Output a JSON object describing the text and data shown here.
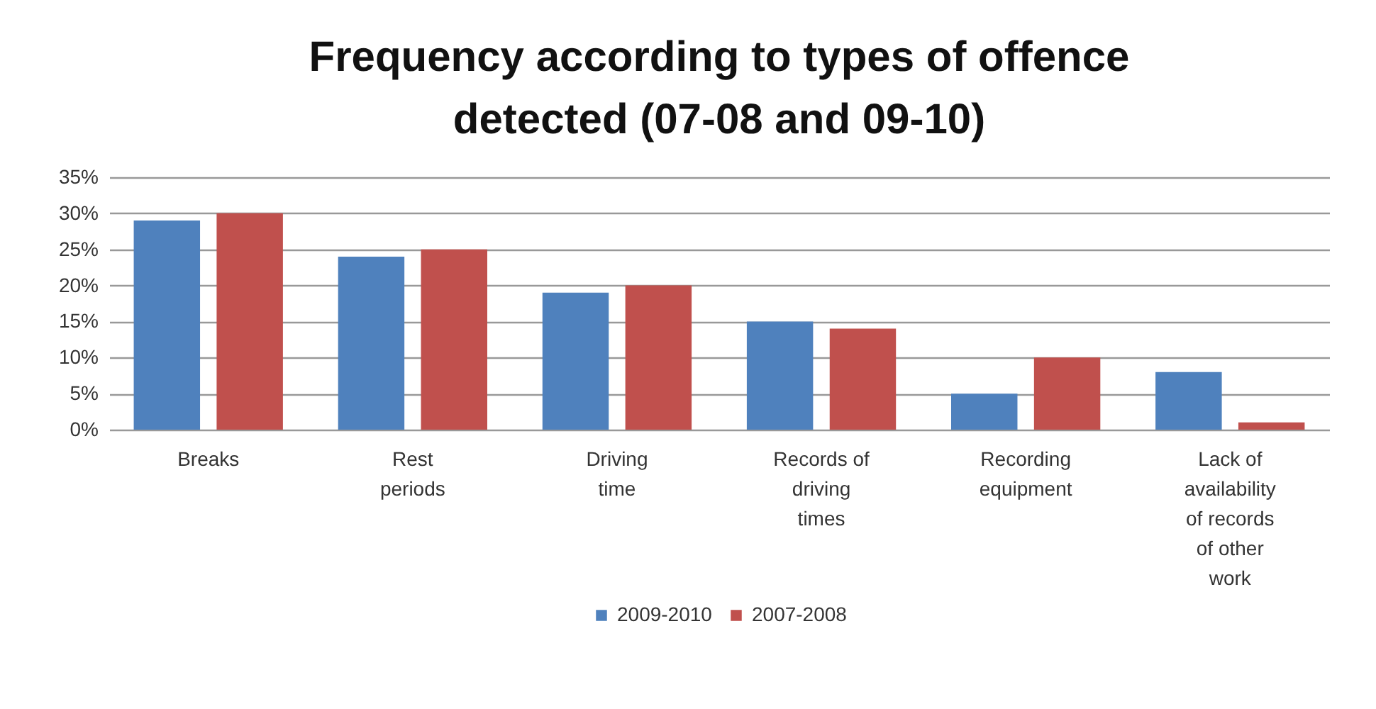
{
  "chart_data": {
    "type": "bar",
    "title": "Frequency according to types of offence detected (07-08 and 09-10)",
    "categories": [
      "Breaks",
      "Rest periods",
      "Driving time",
      "Records of driving times",
      "Recording equipment",
      "Lack of availability of records of other work"
    ],
    "series": [
      {
        "name": "2009-2010",
        "color": "#4f81bd",
        "values": [
          29,
          24,
          19,
          15,
          5,
          8
        ]
      },
      {
        "name": "2007-2008",
        "color": "#c0504d",
        "values": [
          30,
          25,
          20,
          14,
          10,
          1
        ]
      }
    ],
    "ylim": [
      0,
      35
    ],
    "yticks": [
      {
        "value": 0,
        "label": "0%"
      },
      {
        "value": 5,
        "label": "5%"
      },
      {
        "value": 10,
        "label": "10%"
      },
      {
        "value": 15,
        "label": "15%"
      },
      {
        "value": 20,
        "label": "20%"
      },
      {
        "value": 25,
        "label": "25%"
      },
      {
        "value": 30,
        "label": "30%"
      },
      {
        "value": 35,
        "label": "35%"
      }
    ],
    "grid": "y",
    "legend": "bottom"
  }
}
